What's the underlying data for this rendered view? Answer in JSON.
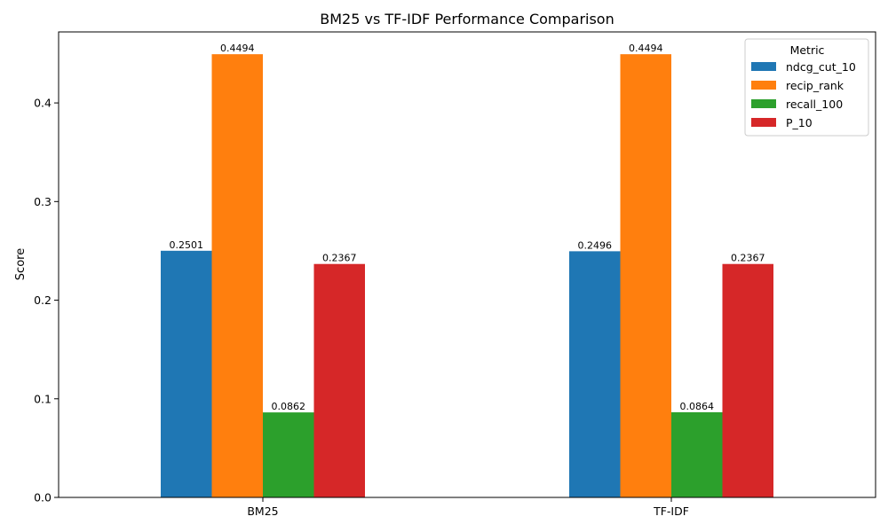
{
  "chart_data": {
    "type": "bar",
    "title": "BM25 vs TF-IDF Performance Comparison",
    "xlabel": "",
    "ylabel": "Score",
    "categories": [
      "BM25",
      "TF-IDF"
    ],
    "series": [
      {
        "name": "ndcg_cut_10",
        "color": "#1f77b4",
        "values": [
          0.2501,
          0.2496
        ],
        "labels": [
          "0.2501",
          "0.2496"
        ]
      },
      {
        "name": "recip_rank",
        "color": "#ff7f0e",
        "values": [
          0.4494,
          0.4494
        ],
        "labels": [
          "0.4494",
          "0.4494"
        ]
      },
      {
        "name": "recall_100",
        "color": "#2ca02c",
        "values": [
          0.0862,
          0.0864
        ],
        "labels": [
          "0.0862",
          "0.0864"
        ]
      },
      {
        "name": "P_10",
        "color": "#d62728",
        "values": [
          0.2367,
          0.2367
        ],
        "labels": [
          "0.2367",
          "0.2367"
        ]
      }
    ],
    "ylim": [
      0,
      0.472
    ],
    "yticks": [
      0.0,
      0.1,
      0.2,
      0.3,
      0.4
    ],
    "ytick_labels": [
      "0.0",
      "0.1",
      "0.2",
      "0.3",
      "0.4"
    ],
    "legend": {
      "title": "Metric",
      "position": "top-right"
    },
    "grid": false
  }
}
